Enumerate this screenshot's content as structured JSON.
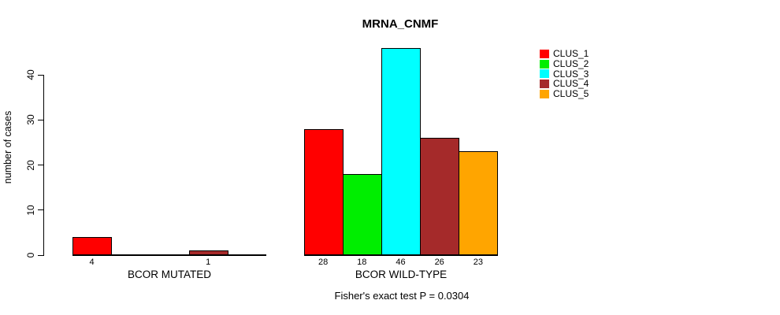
{
  "chart_data": {
    "type": "bar",
    "title": "MRNA_CNMF",
    "xlabel": "",
    "ylabel": "number of cases",
    "ylim": [
      0,
      46
    ],
    "yticks": [
      0,
      10,
      20,
      30,
      40
    ],
    "grid": false,
    "legend_position": "right",
    "categories": [
      "BCOR MUTATED",
      "BCOR WILD-TYPE"
    ],
    "series": [
      {
        "name": "CLUS_1",
        "color": "#ff0000",
        "values": [
          4,
          28
        ]
      },
      {
        "name": "CLUS_2",
        "color": "#00ee00",
        "values": [
          0,
          18
        ]
      },
      {
        "name": "CLUS_3",
        "color": "#00ffff",
        "values": [
          0,
          46
        ]
      },
      {
        "name": "CLUS_4",
        "color": "#a52a2a",
        "values": [
          1,
          26
        ]
      },
      {
        "name": "CLUS_5",
        "color": "#ffa500",
        "values": [
          0,
          23
        ]
      }
    ],
    "bar_value_labels": {
      "BCOR MUTATED": [
        "4",
        "",
        "",
        "1",
        ""
      ],
      "BCOR WILD-TYPE": [
        "28",
        "18",
        "46",
        "26",
        "23"
      ]
    },
    "annotation": "Fisher's exact test P = 0.0304"
  }
}
